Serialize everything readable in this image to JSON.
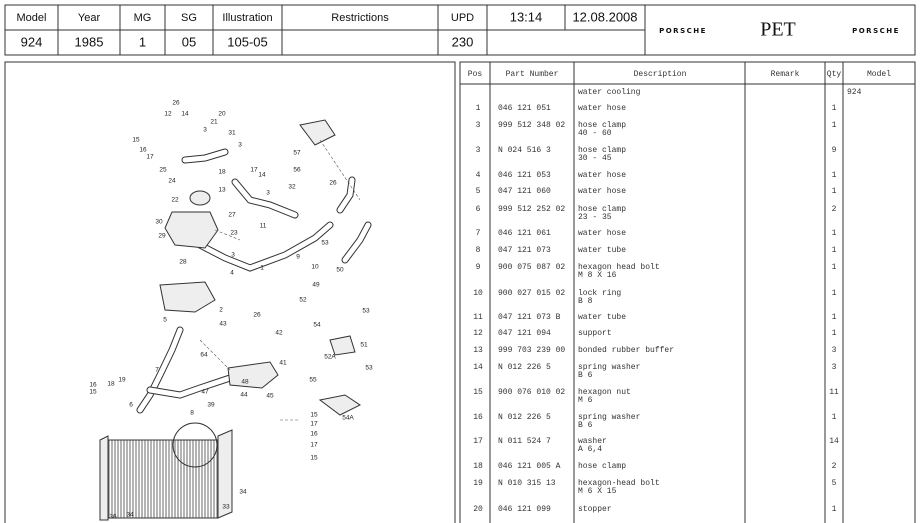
{
  "header": {
    "cells": [
      {
        "label": "Model",
        "value": "924"
      },
      {
        "label": "Year",
        "value": "1985"
      },
      {
        "label": "MG",
        "value": "1"
      },
      {
        "label": "SG",
        "value": "05"
      },
      {
        "label": "Illustration",
        "value": "105-05"
      },
      {
        "label": "Restrictions"
      },
      {
        "label": "UPD",
        "value": "230"
      }
    ],
    "time": "13:14",
    "date": "12.08.2008",
    "brand_left": "PORSCHE",
    "app": "PET",
    "brand_right": "PORSCHE"
  },
  "diagram": {
    "callouts": [
      "26",
      "12",
      "14",
      "20",
      "15",
      "16",
      "17",
      "3",
      "21",
      "31",
      "3",
      "57",
      "56",
      "25",
      "24",
      "18",
      "13",
      "17",
      "14",
      "3",
      "22",
      "32",
      "26",
      "27",
      "23",
      "30",
      "29",
      "3",
      "28",
      "11",
      "53",
      "4",
      "1",
      "10",
      "9",
      "50",
      "49",
      "52",
      "53",
      "54",
      "2",
      "26",
      "43",
      "42",
      "5",
      "51",
      "52A",
      "53",
      "64",
      "41",
      "7",
      "19",
      "18",
      "16",
      "15",
      "6",
      "47",
      "39",
      "48",
      "44",
      "45",
      "55",
      "8",
      "54A",
      "15",
      "17",
      "16",
      "17",
      "15",
      "34",
      "33",
      "36",
      "34"
    ]
  },
  "table": {
    "columns": [
      "Pos",
      "Part Number",
      "Description",
      "Remark",
      "Qty",
      "Model"
    ],
    "group": {
      "desc": "water cooling",
      "model": "924"
    },
    "rows": [
      {
        "pos": "1",
        "part": "046 121 051",
        "desc": "water hose",
        "qty": "1"
      },
      {
        "pos": "3",
        "part": "999 512 348 02",
        "desc": "hose clamp",
        "detail": "40 - 60",
        "qty": "1"
      },
      {
        "pos": "3",
        "part": "N   024 516 3",
        "desc": "hose clamp",
        "detail": "30 - 45",
        "qty": "9"
      },
      {
        "pos": "4",
        "part": "046 121 053",
        "desc": "water hose",
        "qty": "1"
      },
      {
        "pos": "5",
        "part": "047 121 060",
        "desc": "water hose",
        "qty": "1"
      },
      {
        "pos": "6",
        "part": "999 512 252 02",
        "desc": "hose clamp",
        "detail": "23 - 35",
        "qty": "2"
      },
      {
        "pos": "7",
        "part": "046 121 061",
        "desc": "water hose",
        "qty": "1"
      },
      {
        "pos": "8",
        "part": "047 121 073",
        "desc": "water tube",
        "qty": "1"
      },
      {
        "pos": "9",
        "part": "900 075 087 02",
        "desc": "hexagon head bolt",
        "detail": "M 8 X 16",
        "qty": "1"
      },
      {
        "pos": "10",
        "part": "900 027 015 02",
        "desc": "lock ring",
        "detail": "B 8",
        "qty": "1"
      },
      {
        "pos": "11",
        "part": "047 121 073 B",
        "desc": "water tube",
        "qty": "1"
      },
      {
        "pos": "12",
        "part": "047 121 094",
        "desc": "support",
        "qty": "1"
      },
      {
        "pos": "13",
        "part": "999 703 239 00",
        "desc": "bonded rubber buffer",
        "qty": "3"
      },
      {
        "pos": "14",
        "part": "N   012 226 5",
        "desc": "spring washer",
        "detail": "B 6",
        "qty": "3"
      },
      {
        "pos": "15",
        "part": "900 076 010 02",
        "desc": "hexagon nut",
        "detail": "M 6",
        "qty": "11"
      },
      {
        "pos": "16",
        "part": "N   012 226 5",
        "desc": "spring washer",
        "detail": "B 6",
        "qty": "1"
      },
      {
        "pos": "17",
        "part": "N   011 524 7",
        "desc": "washer",
        "detail": "A 6,4",
        "qty": "14"
      },
      {
        "pos": "18",
        "part": "046 121 005 A",
        "desc": "hose clamp",
        "qty": "2"
      },
      {
        "pos": "19",
        "part": "N   010 315 13",
        "desc": "hexagon-head bolt",
        "detail": "M 6 X 15",
        "qty": "5"
      },
      {
        "pos": "20",
        "part": "046 121 099",
        "desc": "stopper",
        "qty": "1"
      }
    ]
  }
}
